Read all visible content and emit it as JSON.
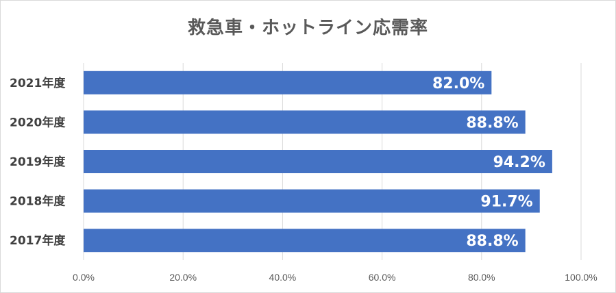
{
  "chart_data": {
    "type": "bar",
    "orientation": "horizontal",
    "title": "救急車・ホットライン応需率",
    "categories": [
      "2021年度",
      "2020年度",
      "2019年度",
      "2018年度",
      "2017年度"
    ],
    "values": [
      82.0,
      88.8,
      94.2,
      91.7,
      88.8
    ],
    "data_labels": [
      "82.0%",
      "88.8%",
      "94.2%",
      "91.7%",
      "88.8%"
    ],
    "xlim": [
      0,
      100
    ],
    "x_ticks": [
      0,
      20,
      40,
      60,
      80,
      100
    ],
    "x_tick_labels": [
      "0.0%",
      "20.0%",
      "40.0%",
      "60.0%",
      "80.0%",
      "100.0%"
    ],
    "xlabel": "",
    "ylabel": "",
    "grid": true,
    "colors": {
      "bar": "#4472c4",
      "grid": "#d9d9d9",
      "data_label": "#ffffff"
    }
  }
}
